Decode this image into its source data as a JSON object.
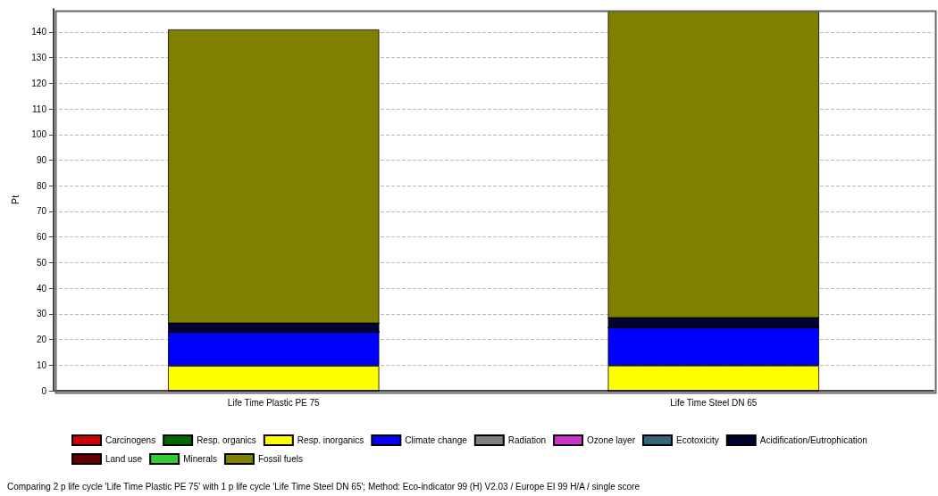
{
  "chart_data": {
    "type": "bar",
    "stacked": true,
    "ylabel": "Pt",
    "categories": [
      "Life Time Plastic PE 75",
      "Life Time Steel DN 65"
    ],
    "series": [
      {
        "name": "Carcinogens",
        "color": "#cc0000",
        "values": [
          0,
          0
        ]
      },
      {
        "name": "Resp. organics",
        "color": "#006600",
        "values": [
          0,
          0
        ]
      },
      {
        "name": "Resp. inorganics",
        "color": "#ffff00",
        "values": [
          9.7,
          9.8
        ]
      },
      {
        "name": "Climate change",
        "color": "#0000ff",
        "values": [
          13.2,
          14.8
        ]
      },
      {
        "name": "Radiation",
        "color": "#808080",
        "values": [
          0,
          0
        ]
      },
      {
        "name": "Ozone layer",
        "color": "#cc33cc",
        "values": [
          0,
          0
        ]
      },
      {
        "name": "Ecotoxicity",
        "color": "#336677",
        "values": [
          0,
          0
        ]
      },
      {
        "name": "Acidification/Eutrophication",
        "color": "#000033",
        "values": [
          3.4,
          3.8
        ]
      },
      {
        "name": "Land use",
        "color": "#660000",
        "values": [
          0,
          0
        ]
      },
      {
        "name": "Minerals",
        "color": "#33cc33",
        "values": [
          0,
          0
        ]
      },
      {
        "name": "Fossil fuels",
        "color": "#808000",
        "values": [
          114.7,
          119.8
        ]
      }
    ],
    "ylim": [
      0,
      149
    ],
    "yticks": [
      0,
      10,
      20,
      30,
      40,
      50,
      60,
      70,
      80,
      90,
      100,
      110,
      120,
      130,
      140
    ],
    "grid": "y",
    "legend": "bottom",
    "annotations": [
      "Comparing 2 p life cycle 'Life Time Plastic PE 75' with 1 p life cycle 'Life Time Steel DN 65'; Method: Eco-indicator 99 (H) V2.03 / Europe EI 99 H/A / single score"
    ]
  }
}
